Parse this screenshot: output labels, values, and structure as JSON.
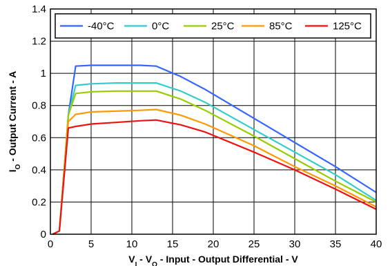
{
  "chart_data": {
    "type": "line",
    "title": "",
    "xlabel": {
      "parts": [
        [
          "V",
          ""
        ],
        [
          "I",
          "sub"
        ],
        [
          " - V",
          ""
        ],
        [
          "O",
          "sub"
        ],
        [
          " - Input - Output Differential - V",
          ""
        ]
      ]
    },
    "ylabel": {
      "parts": [
        [
          "I",
          ""
        ],
        [
          "O",
          "sub"
        ],
        [
          " - Output Current - A",
          ""
        ]
      ]
    },
    "xlim": [
      0,
      40
    ],
    "ylim": [
      0,
      1.4
    ],
    "xticks": [
      0,
      5,
      10,
      15,
      20,
      25,
      30,
      35,
      40
    ],
    "yticks": [
      0,
      0.2,
      0.4,
      0.6,
      0.8,
      1,
      1.2,
      1.4
    ],
    "xtick_labels": [
      "0",
      "5",
      "10",
      "15",
      "20",
      "25",
      "30",
      "35",
      "40"
    ],
    "ytick_labels": [
      "0",
      "0.2",
      "0.4",
      "0.6",
      "0.8",
      "1",
      "1.2",
      "1.4"
    ],
    "grid": true,
    "legend_position": "top",
    "series": [
      {
        "name": "-40°C",
        "color": "#3366ff",
        "points": [
          [
            0.3,
            0
          ],
          [
            1.1,
            0.02
          ],
          [
            2.2,
            0.74
          ],
          [
            3.1,
            1.045
          ],
          [
            5,
            1.05
          ],
          [
            8,
            1.05
          ],
          [
            11,
            1.05
          ],
          [
            13,
            1.045
          ],
          [
            16,
            0.98
          ],
          [
            19,
            0.9
          ],
          [
            25,
            0.72
          ],
          [
            30,
            0.57
          ],
          [
            35,
            0.42
          ],
          [
            40,
            0.26
          ]
        ]
      },
      {
        "name": "0°C",
        "color": "#33cccc",
        "points": [
          [
            0.3,
            0
          ],
          [
            1.1,
            0.02
          ],
          [
            2.2,
            0.74
          ],
          [
            3.1,
            0.925
          ],
          [
            5,
            0.935
          ],
          [
            8,
            0.94
          ],
          [
            11,
            0.94
          ],
          [
            13,
            0.94
          ],
          [
            16,
            0.89
          ],
          [
            19,
            0.82
          ],
          [
            25,
            0.65
          ],
          [
            30,
            0.51
          ],
          [
            35,
            0.37
          ],
          [
            40,
            0.21
          ]
        ]
      },
      {
        "name": "25°C",
        "color": "#99cc00",
        "points": [
          [
            0.3,
            0
          ],
          [
            1.1,
            0.02
          ],
          [
            2.2,
            0.74
          ],
          [
            3.1,
            0.875
          ],
          [
            5,
            0.885
          ],
          [
            8,
            0.89
          ],
          [
            11,
            0.89
          ],
          [
            13,
            0.89
          ],
          [
            16,
            0.84
          ],
          [
            19,
            0.77
          ],
          [
            25,
            0.61
          ],
          [
            30,
            0.47
          ],
          [
            35,
            0.33
          ],
          [
            40,
            0.2
          ]
        ]
      },
      {
        "name": "85°C",
        "color": "#ff9900",
        "points": [
          [
            0.3,
            0
          ],
          [
            1.1,
            0.02
          ],
          [
            2.2,
            0.7
          ],
          [
            3.1,
            0.745
          ],
          [
            5,
            0.76
          ],
          [
            8,
            0.765
          ],
          [
            11,
            0.77
          ],
          [
            13,
            0.775
          ],
          [
            16,
            0.74
          ],
          [
            19,
            0.685
          ],
          [
            25,
            0.55
          ],
          [
            30,
            0.42
          ],
          [
            35,
            0.3
          ],
          [
            40,
            0.17
          ]
        ]
      },
      {
        "name": "125°C",
        "color": "#ee1111",
        "points": [
          [
            0.3,
            0
          ],
          [
            1.1,
            0.02
          ],
          [
            2.2,
            0.66
          ],
          [
            3.1,
            0.67
          ],
          [
            5,
            0.685
          ],
          [
            8,
            0.695
          ],
          [
            11,
            0.705
          ],
          [
            13,
            0.71
          ],
          [
            16,
            0.68
          ],
          [
            19,
            0.635
          ],
          [
            25,
            0.51
          ],
          [
            30,
            0.4
          ],
          [
            35,
            0.28
          ],
          [
            40,
            0.155
          ]
        ]
      }
    ]
  }
}
